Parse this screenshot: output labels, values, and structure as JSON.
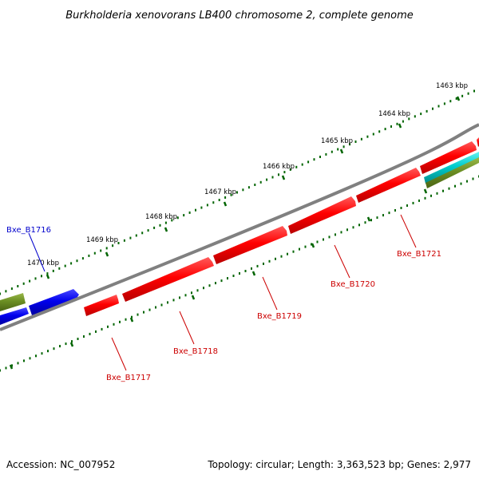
{
  "title": "Burkholderia xenovorans LB400 chromosome 2, complete genome",
  "footer": {
    "accession": "Accession: NC_007952",
    "summary": "Topology: circular; Length: 3,363,523 bp; Genes: 2,977"
  },
  "kbp_ticks": [
    {
      "label": "1463 kbp"
    },
    {
      "label": "1464 kbp"
    },
    {
      "label": "1465 kbp"
    },
    {
      "label": "1466 kbp"
    },
    {
      "label": "1467 kbp"
    },
    {
      "label": "1468 kbp"
    },
    {
      "label": "1469 kbp"
    },
    {
      "label": "1470 kbp"
    }
  ],
  "genes": [
    {
      "label": "Bxe_B1716",
      "color": "#0000cc"
    },
    {
      "label": "Bxe_B1717",
      "color": "#cc0000"
    },
    {
      "label": "Bxe_B1718",
      "color": "#cc0000"
    },
    {
      "label": "Bxe_B1719",
      "color": "#cc0000"
    },
    {
      "label": "Bxe_B1720",
      "color": "#cc0000"
    },
    {
      "label": "Bxe_B1721",
      "color": "#cc0000"
    }
  ],
  "colors": {
    "backbone": "#808080",
    "forward_gene": "#ff0000",
    "reverse_gene": "#0000ff",
    "olive_feature": "#6b8e23",
    "cyan_feature": "#00cccc",
    "tick": "#006400"
  }
}
